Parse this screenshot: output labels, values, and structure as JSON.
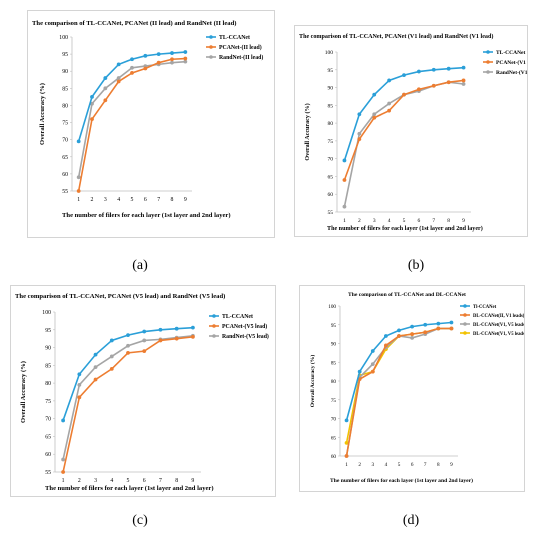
{
  "captions": [
    "(a)",
    "(b)",
    "(c)",
    "(d)"
  ],
  "colors": {
    "tl": "#2a9fd8",
    "pca": "#ed7d31",
    "rand": "#a5a5a5",
    "dl3": "#f2c200",
    "grid": "#d9d9d9"
  },
  "chart_data": [
    {
      "type": "line",
      "title": "The comparison of TL-CCANet, PCANet (II lead) and RandNet (II lead)",
      "xlabel": "The number of filers for each layer (1st layer and 2nd layer)",
      "ylabel": "Overall Accuracy (%)",
      "x": [
        1,
        2,
        3,
        4,
        5,
        6,
        7,
        8,
        9
      ],
      "ylim": [
        55,
        100
      ],
      "yticks": [
        55,
        60,
        65,
        70,
        75,
        80,
        85,
        90,
        95,
        100
      ],
      "grid": false,
      "legend": "top-right",
      "series": [
        {
          "name": "TL-CCANet",
          "color": "#2a9fd8",
          "values": [
            69.5,
            82.5,
            88.0,
            92.0,
            93.5,
            94.5,
            95.0,
            95.3,
            95.6
          ]
        },
        {
          "name": "PCANet-(II lead)",
          "color": "#ed7d31",
          "values": [
            55.0,
            76.0,
            81.5,
            87.0,
            89.5,
            90.8,
            92.5,
            93.5,
            93.7
          ]
        },
        {
          "name": "RandNet-(II lead)",
          "color": "#a5a5a5",
          "values": [
            59.0,
            80.5,
            85.0,
            88.0,
            91.0,
            91.5,
            92.0,
            92.5,
            92.8
          ]
        }
      ]
    },
    {
      "type": "line",
      "title": "The comparison of TL-CCANet, PCANet (V1 lead) and RandNet (V1 lead)",
      "xlabel": "The number of filers for each layer (1st layer and 2nd layer)",
      "ylabel": "Overall Accuracy (%)",
      "x": [
        1,
        2,
        3,
        4,
        5,
        6,
        7,
        8,
        9
      ],
      "ylim": [
        55,
        100
      ],
      "yticks": [
        55,
        60,
        65,
        70,
        75,
        80,
        85,
        90,
        95,
        100
      ],
      "grid": false,
      "legend": "top-right",
      "series": [
        {
          "name": "TL-CCANet",
          "color": "#2a9fd8",
          "values": [
            69.5,
            82.5,
            88.0,
            92.0,
            93.5,
            94.5,
            95.0,
            95.3,
            95.6
          ]
        },
        {
          "name": "PCANet-(V1 lead)",
          "color": "#ed7d31",
          "values": [
            64.0,
            75.5,
            81.5,
            83.5,
            88.0,
            89.5,
            90.5,
            91.5,
            92.0
          ]
        },
        {
          "name": "RandNet-(V1 lead)",
          "color": "#a5a5a5",
          "values": [
            56.5,
            77.0,
            82.5,
            85.5,
            88.0,
            89.0,
            90.5,
            91.5,
            91.0
          ]
        }
      ]
    },
    {
      "type": "line",
      "title": "The comparison of TL-CCANet, PCANet (V5 lead) and RandNet (V5 lead)",
      "xlabel": "The number of filers for each layer (1st layer and 2nd layer)",
      "ylabel": "Overall Accuracy (%)",
      "x": [
        1,
        2,
        3,
        4,
        5,
        6,
        7,
        8,
        9
      ],
      "ylim": [
        55,
        100
      ],
      "yticks": [
        55,
        60,
        65,
        70,
        75,
        80,
        85,
        90,
        95,
        100
      ],
      "grid": false,
      "legend": "top-right",
      "series": [
        {
          "name": "TL-CCANet",
          "color": "#2a9fd8",
          "values": [
            69.5,
            82.5,
            88.0,
            92.0,
            93.5,
            94.5,
            95.0,
            95.3,
            95.6
          ]
        },
        {
          "name": "PCANet-(V5 lead)",
          "color": "#ed7d31",
          "values": [
            55.0,
            76.0,
            81.0,
            84.0,
            88.5,
            89.0,
            92.0,
            92.5,
            93.0
          ]
        },
        {
          "name": "RandNet-(V5 lead)",
          "color": "#a5a5a5",
          "values": [
            58.5,
            79.5,
            84.5,
            87.5,
            90.5,
            92.0,
            92.3,
            92.8,
            93.3
          ]
        }
      ]
    },
    {
      "type": "line",
      "title": "The comparison of TL-CCANet and DL-CCANet",
      "xlabel": "The number of filers for each layer (1st layer and 2nd layer)",
      "ylabel": "Overall Accuracy (%)",
      "x": [
        1,
        2,
        3,
        4,
        5,
        6,
        7,
        8,
        9
      ],
      "ylim": [
        60,
        100
      ],
      "yticks": [
        60,
        65,
        70,
        75,
        80,
        85,
        90,
        95,
        100
      ],
      "grid": false,
      "legend": "top-right",
      "series": [
        {
          "name": "Tl-CCANet",
          "color": "#2a9fd8",
          "values": [
            69.5,
            82.5,
            88.0,
            92.0,
            93.5,
            94.5,
            95.0,
            95.3,
            95.6
          ]
        },
        {
          "name": "DL-CCANet(II, V1 leads)",
          "color": "#ed7d31",
          "values": [
            60.0,
            80.5,
            82.5,
            89.5,
            92.0,
            92.5,
            93.0,
            94.0,
            94.0
          ]
        },
        {
          "name": "DL-CCANet(V1, V5 leads)",
          "color": "#a5a5a5",
          "values": [
            60.0,
            81.0,
            84.5,
            89.0,
            92.0,
            91.5,
            92.5,
            94.0,
            94.0
          ]
        },
        {
          "name": "DL-CCANet(V1, V5 leads)",
          "color": "#f2c200",
          "values": [
            63.5,
            81.5,
            82.5,
            88.5,
            92.0,
            92.5,
            93.0,
            94.0,
            94.0
          ]
        }
      ]
    }
  ]
}
